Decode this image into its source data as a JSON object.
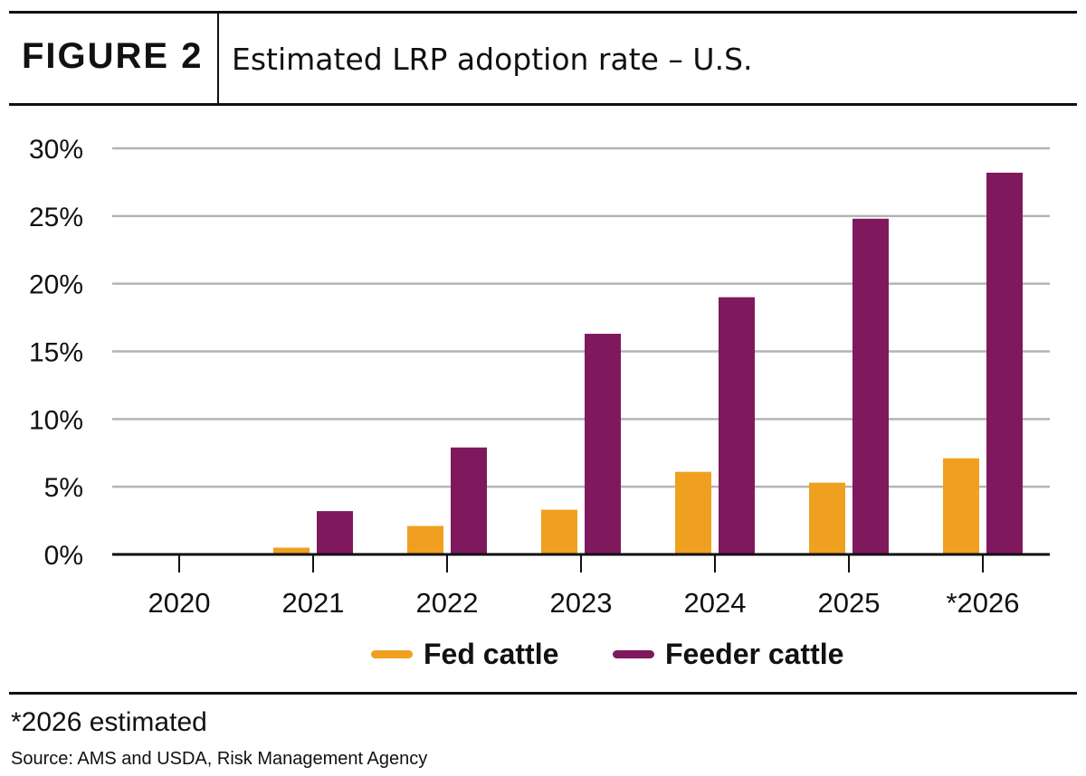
{
  "header": {
    "figure_label": "FIGURE 2",
    "title": "Estimated LRP adoption rate – U.S."
  },
  "footnote": "*2026 estimated",
  "source": "Source: AMS and USDA, Risk Management Agency",
  "colors": {
    "fed": "#F0A020",
    "feeder": "#80185E",
    "grid": "#B4B4B4",
    "axis": "#111111"
  },
  "chart_data": {
    "type": "bar",
    "title": "Estimated LRP adoption rate – U.S.",
    "xlabel": "",
    "ylabel": "",
    "categories": [
      "2020",
      "2021",
      "2022",
      "2023",
      "2024",
      "2025",
      "*2026"
    ],
    "series": [
      {
        "name": "Fed cattle",
        "color": "#F0A020",
        "values": [
          0,
          0.5,
          2.1,
          3.3,
          6.1,
          5.3,
          7.1
        ]
      },
      {
        "name": "Feeder cattle",
        "color": "#80185E",
        "values": [
          0,
          3.2,
          7.9,
          16.3,
          19.0,
          24.8,
          28.2
        ]
      }
    ],
    "y_ticks": [
      "0%",
      "5%",
      "10%",
      "15%",
      "20%",
      "25%",
      "30%"
    ],
    "y_tick_values": [
      0,
      5,
      10,
      15,
      20,
      25,
      30
    ],
    "ylim": [
      0,
      30
    ],
    "grid": true,
    "legend": "bottom-center"
  }
}
